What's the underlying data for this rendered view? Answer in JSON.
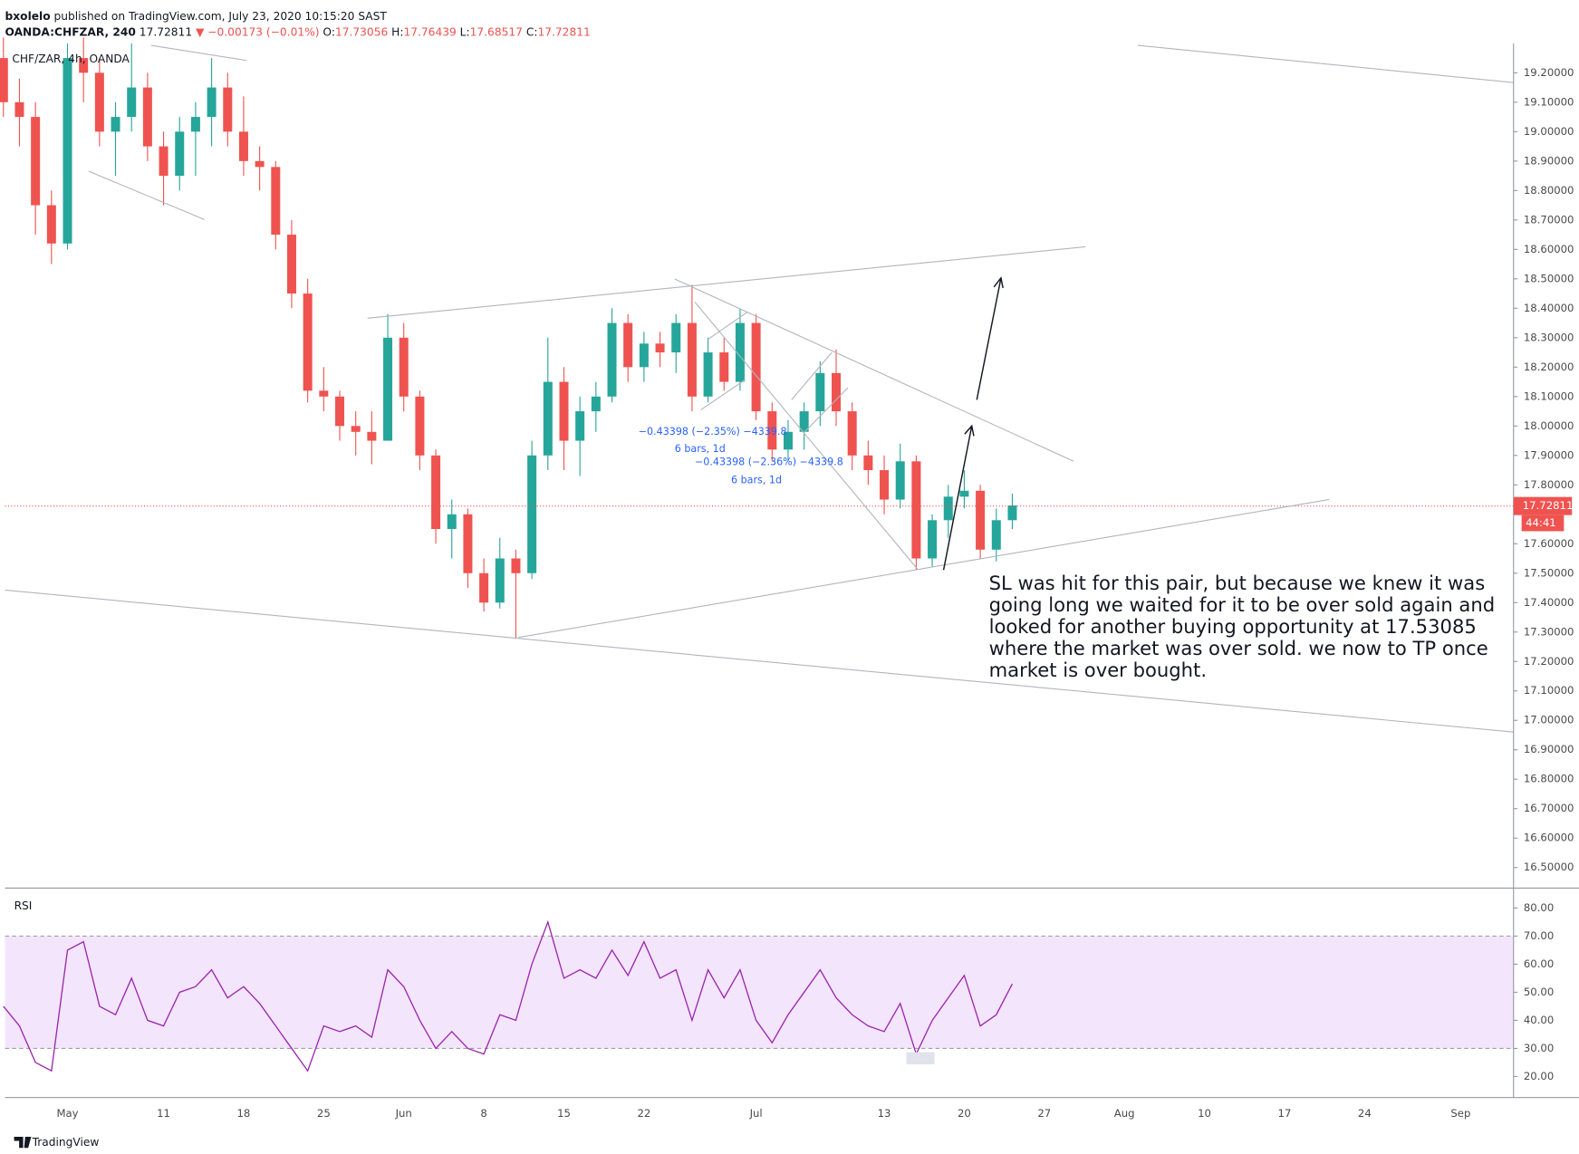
{
  "header": {
    "author": "bxolelo",
    "published": "published on TradingView.com, July 23, 2020 10:15:20 SAST",
    "symbol": "OANDA:CHFZAR, 240",
    "last": "17.72811",
    "change": "▼ −0.00173 (−0.01%)",
    "ohlc": [
      {
        "label": "O:",
        "value": "17.73056"
      },
      {
        "label": "H:",
        "value": "17.76439"
      },
      {
        "label": "L:",
        "value": "17.68517"
      },
      {
        "label": "C:",
        "value": "17.72811"
      }
    ],
    "footer": "TradingView"
  },
  "chart_data": [
    {
      "type": "candlestick",
      "legend": "CHF/ZAR, 4h, OANDA",
      "up_color": "#26a69a",
      "down_color": "#ef5350",
      "open": [
        19.25,
        19.1,
        19.05,
        18.75,
        18.62,
        19.25,
        19.2,
        19.0,
        19.05,
        19.15,
        18.95,
        18.85,
        19.0,
        19.05,
        19.15,
        19.0,
        18.9,
        18.88,
        18.65,
        18.45,
        18.12,
        18.1,
        18.0,
        17.98,
        17.95,
        18.3,
        18.1,
        17.9,
        17.65,
        17.7,
        17.5,
        17.4,
        17.55,
        17.5,
        17.9,
        18.15,
        17.95,
        18.05,
        18.1,
        18.35,
        18.2,
        18.28,
        18.25,
        18.35,
        18.1,
        18.25,
        18.15,
        18.35,
        18.05,
        17.92,
        17.98,
        18.05,
        18.18,
        18.05,
        17.9,
        17.85,
        17.75,
        17.88,
        17.55,
        17.68,
        17.76,
        17.78,
        17.58,
        17.68
      ],
      "high": [
        19.32,
        19.18,
        19.1,
        18.8,
        19.3,
        19.32,
        19.25,
        19.1,
        19.3,
        19.2,
        19.0,
        19.05,
        19.1,
        19.25,
        19.2,
        19.12,
        18.95,
        18.9,
        18.7,
        18.5,
        18.2,
        18.12,
        18.05,
        18.05,
        18.38,
        18.35,
        18.12,
        17.92,
        17.75,
        17.72,
        17.55,
        17.62,
        17.58,
        17.95,
        18.3,
        18.2,
        18.1,
        18.15,
        18.4,
        18.38,
        18.32,
        18.32,
        18.38,
        18.48,
        18.3,
        18.3,
        18.4,
        18.38,
        18.08,
        18.02,
        18.08,
        18.22,
        18.26,
        18.08,
        17.95,
        17.9,
        17.94,
        17.9,
        17.7,
        17.8,
        17.85,
        17.8,
        17.72,
        17.77
      ],
      "low": [
        19.05,
        18.95,
        18.65,
        18.55,
        18.6,
        19.1,
        18.95,
        18.85,
        19.0,
        18.9,
        18.75,
        18.8,
        18.85,
        18.95,
        18.95,
        18.85,
        18.8,
        18.6,
        18.4,
        18.08,
        18.05,
        17.95,
        17.9,
        17.87,
        17.95,
        18.05,
        17.85,
        17.6,
        17.55,
        17.45,
        17.37,
        17.38,
        17.28,
        17.48,
        17.85,
        17.85,
        17.83,
        17.98,
        18.08,
        18.15,
        18.15,
        18.2,
        18.18,
        18.05,
        18.08,
        18.12,
        18.12,
        18.02,
        17.88,
        17.88,
        17.92,
        18.0,
        18.0,
        17.85,
        17.8,
        17.7,
        17.72,
        17.51,
        17.52,
        17.62,
        17.72,
        17.55,
        17.54,
        17.65
      ],
      "close": [
        19.1,
        19.05,
        18.75,
        18.62,
        19.25,
        19.2,
        19.0,
        19.05,
        19.15,
        18.95,
        18.85,
        19.0,
        19.05,
        19.15,
        19.0,
        18.9,
        18.88,
        18.65,
        18.45,
        18.12,
        18.1,
        18.0,
        17.98,
        17.95,
        18.3,
        18.1,
        17.9,
        17.65,
        17.7,
        17.5,
        17.4,
        17.55,
        17.5,
        17.9,
        18.15,
        17.95,
        18.05,
        18.1,
        18.35,
        18.2,
        18.28,
        18.25,
        18.35,
        18.1,
        18.25,
        18.15,
        18.35,
        18.05,
        17.92,
        17.98,
        18.05,
        18.18,
        18.05,
        17.9,
        17.85,
        17.75,
        17.88,
        17.55,
        17.68,
        17.76,
        17.78,
        17.58,
        17.68,
        17.73
      ],
      "last_price": 17.72811,
      "countdown": "44:41",
      "last_color": "#ef5350",
      "xlim": [
        0.1,
        94.3
      ],
      "xticks": [
        {
          "value": 4,
          "label": "May"
        },
        {
          "value": 10,
          "label": "11"
        },
        {
          "value": 15,
          "label": "18"
        },
        {
          "value": 20,
          "label": "25"
        },
        {
          "value": 25,
          "label": "Jun"
        },
        {
          "value": 30,
          "label": "8"
        },
        {
          "value": 35,
          "label": "15"
        },
        {
          "value": 40,
          "label": "22"
        },
        {
          "value": 47,
          "label": "Jul"
        },
        {
          "value": 55,
          "label": "13"
        },
        {
          "value": 60,
          "label": "20"
        },
        {
          "value": 65,
          "label": "27"
        },
        {
          "value": 70,
          "label": "Aug"
        },
        {
          "value": 75,
          "label": "10"
        },
        {
          "value": 80,
          "label": "17"
        },
        {
          "value": 85,
          "label": "24"
        },
        {
          "value": 91,
          "label": "Sep"
        }
      ],
      "ylim": [
        16.43,
        19.3
      ],
      "yticks": [
        {
          "value": 16.5,
          "label": "16.50000"
        },
        {
          "value": 16.6,
          "label": "16.60000"
        },
        {
          "value": 16.7,
          "label": "16.70000"
        },
        {
          "value": 16.8,
          "label": "16.80000"
        },
        {
          "value": 16.9,
          "label": "16.90000"
        },
        {
          "value": 17.0,
          "label": "17.00000"
        },
        {
          "value": 17.1,
          "label": "17.10000"
        },
        {
          "value": 17.2,
          "label": "17.20000"
        },
        {
          "value": 17.3,
          "label": "17.30000"
        },
        {
          "value": 17.4,
          "label": "17.40000"
        },
        {
          "value": 17.5,
          "label": "17.50000"
        },
        {
          "value": 17.6,
          "label": "17.60000"
        },
        {
          "value": 17.8,
          "label": "17.80000"
        },
        {
          "value": 17.9,
          "label": "17.90000"
        },
        {
          "value": 18.0,
          "label": "18.00000"
        },
        {
          "value": 18.1,
          "label": "18.10000"
        },
        {
          "value": 18.2,
          "label": "18.20000"
        },
        {
          "value": 18.3,
          "label": "18.30000"
        },
        {
          "value": 18.4,
          "label": "18.40000"
        },
        {
          "value": 18.5,
          "label": "18.50000"
        },
        {
          "value": 18.6,
          "label": "18.60000"
        },
        {
          "value": 18.7,
          "label": "18.70000"
        },
        {
          "value": 18.8,
          "label": "18.80000"
        },
        {
          "value": 18.9,
          "label": "18.90000"
        },
        {
          "value": 19.0,
          "label": "19.00000"
        },
        {
          "value": 19.1,
          "label": "19.10000"
        },
        {
          "value": 19.2,
          "label": "19.20000"
        }
      ],
      "measures": [
        {
          "change": "−0.43398 (−2.35%) −4339.8",
          "span": "6 bars, 1d"
        },
        {
          "change": "−0.43398 (−2.36%) −4339.8",
          "span": "6 bars, 1d"
        }
      ],
      "annotation": [
        "SL was hit for this pair, but because we knew it was",
        "going long we waited for it to be over sold again and",
        "looked for another buying opportunity at 17.53085",
        "where the market was over sold. we now to TP once",
        "market is over bought."
      ]
    },
    {
      "type": "line",
      "title": "RSI",
      "color": "#9c27b0",
      "band": [
        30,
        70
      ],
      "band_color": "#f3e5fc",
      "values": [
        45,
        38,
        25,
        22,
        65,
        68,
        45,
        42,
        55,
        40,
        38,
        50,
        52,
        58,
        48,
        52,
        46,
        38,
        30,
        22,
        38,
        36,
        38,
        34,
        58,
        52,
        40,
        30,
        36,
        30,
        28,
        42,
        40,
        60,
        75,
        55,
        58,
        55,
        65,
        56,
        68,
        55,
        58,
        40,
        58,
        48,
        58,
        40,
        32,
        42,
        50,
        58,
        48,
        42,
        38,
        36,
        46,
        28,
        40,
        48,
        56,
        38,
        42,
        53
      ],
      "ylim": [
        12.5,
        86
      ],
      "yticks": [
        {
          "value": 20,
          "label": "20.00"
        },
        {
          "value": 30,
          "label": "30.00"
        },
        {
          "value": 40,
          "label": "40.00"
        },
        {
          "value": 50,
          "label": "50.00"
        },
        {
          "value": 60,
          "label": "60.00"
        },
        {
          "value": 70,
          "label": "70.00"
        },
        {
          "value": 80,
          "label": "80.00"
        }
      ]
    }
  ]
}
